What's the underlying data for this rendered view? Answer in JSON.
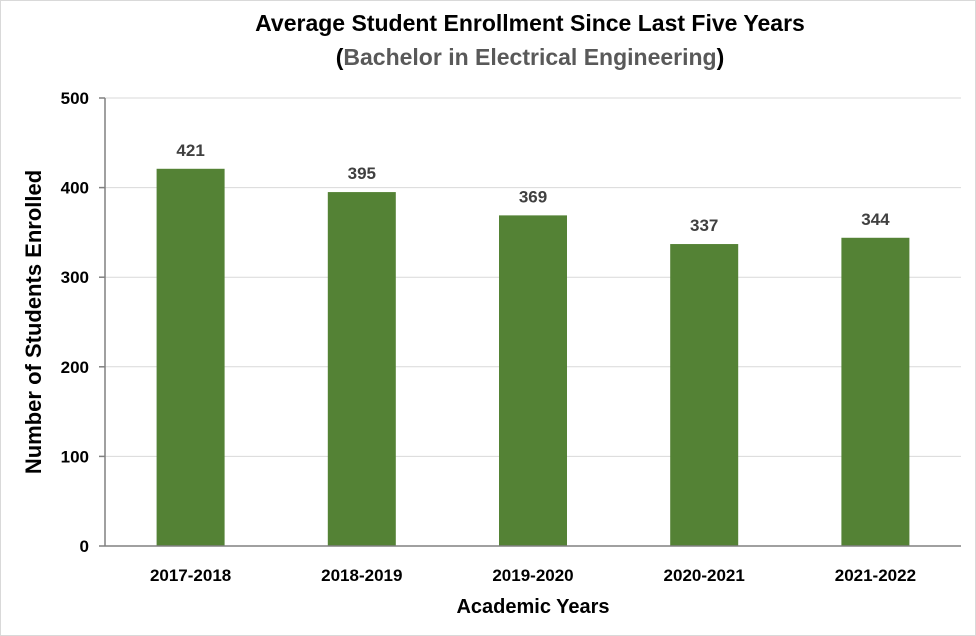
{
  "chart_data": {
    "type": "bar",
    "title": "Average Student Enrollment Since Last Five Years",
    "subtitle": "Bachelor in Electrical Engineering",
    "subtitle_open": "(",
    "subtitle_close": ")",
    "xlabel": "Academic Years",
    "ylabel": "Number of Students Enrolled",
    "categories": [
      "2017-2018",
      "2018-2019",
      "2019-2020",
      "2020-2021",
      "2021-2022"
    ],
    "values": [
      421,
      395,
      369,
      337,
      344
    ],
    "data_labels": [
      "421",
      "395",
      "369",
      "337",
      "344"
    ],
    "ylim": [
      0,
      500
    ],
    "yticks": [
      0,
      100,
      200,
      300,
      400,
      500
    ],
    "ytick_labels": [
      "0",
      "100",
      "200",
      "300",
      "400",
      "500"
    ],
    "grid": true,
    "legend": "none",
    "bar_color": "#548235"
  }
}
